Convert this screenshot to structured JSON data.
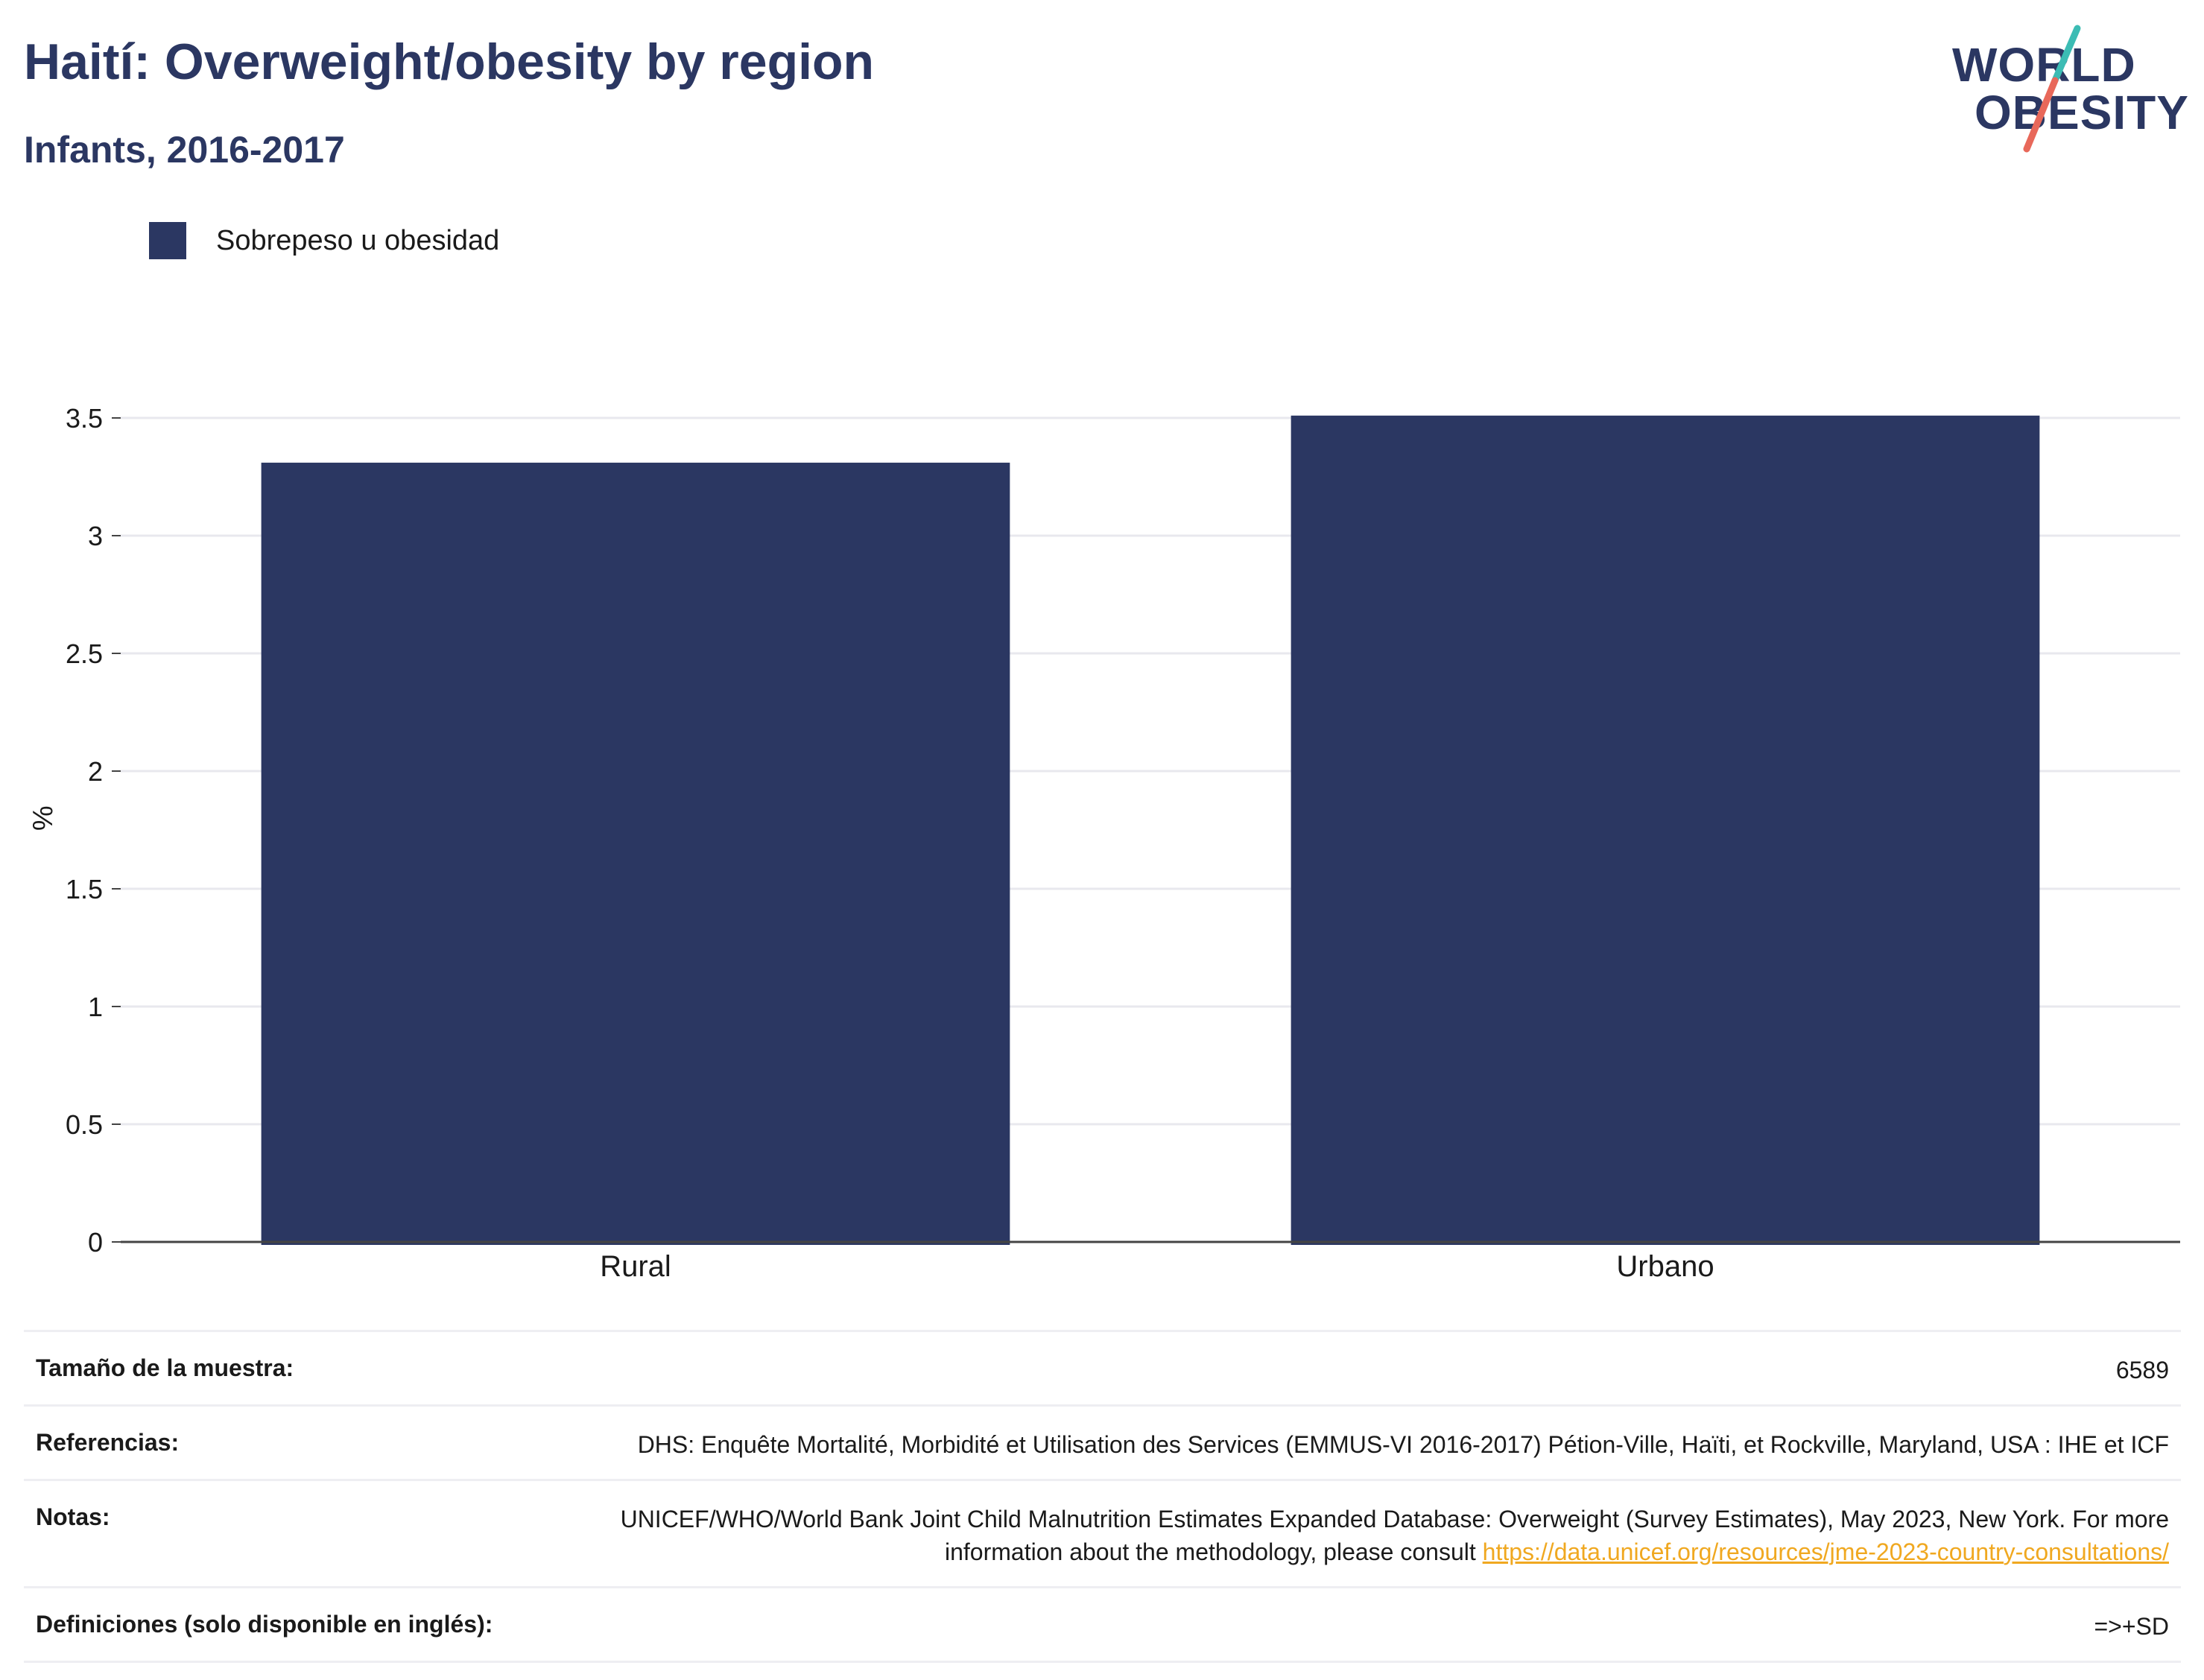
{
  "header": {
    "title": "Haití: Overweight/obesity by region",
    "subtitle": "Infants, 2016-2017"
  },
  "logo": {
    "line1": "WORLD",
    "line2": "OBESITY",
    "accent_colors": [
      "#3cbcb4",
      "#e8685a"
    ]
  },
  "legend": {
    "label": "Sobrepeso u obesidad",
    "color": "#2b3762"
  },
  "chart_data": {
    "type": "bar",
    "categories": [
      "Rural",
      "Urbano"
    ],
    "series": [
      {
        "name": "Sobrepeso u obesidad",
        "values": [
          3.31,
          3.51
        ],
        "color": "#2b3762"
      }
    ],
    "ylabel": "%",
    "xlabel": "",
    "ylim": [
      0,
      3.5
    ],
    "yticks": [
      "0",
      "0.5",
      "1",
      "1.5",
      "2",
      "2.5",
      "3",
      "3.5"
    ],
    "grid": true
  },
  "info": {
    "sample_size": {
      "label": "Tamaño de la muestra:",
      "value": "6589"
    },
    "references": {
      "label": "Referencias:",
      "value": "DHS: Enquête Mortalité, Morbidité et Utilisation des Services (EMMUS-VI 2016-2017) Pétion-Ville, Haïti, et Rockville, Maryland, USA : IHE et ICF"
    },
    "notes": {
      "label": "Notas:",
      "value": "UNICEF/WHO/World Bank Joint Child Malnutrition Estimates Expanded Database: Overweight (Survey Estimates), May 2023, New York. For more information about the methodology, please consult ",
      "link": "https://data.unicef.org/resources/jme-2023-country-consultations/"
    },
    "definitions": {
      "label": "Definiciones (solo disponible en inglés):",
      "value": "=>+SD"
    }
  }
}
